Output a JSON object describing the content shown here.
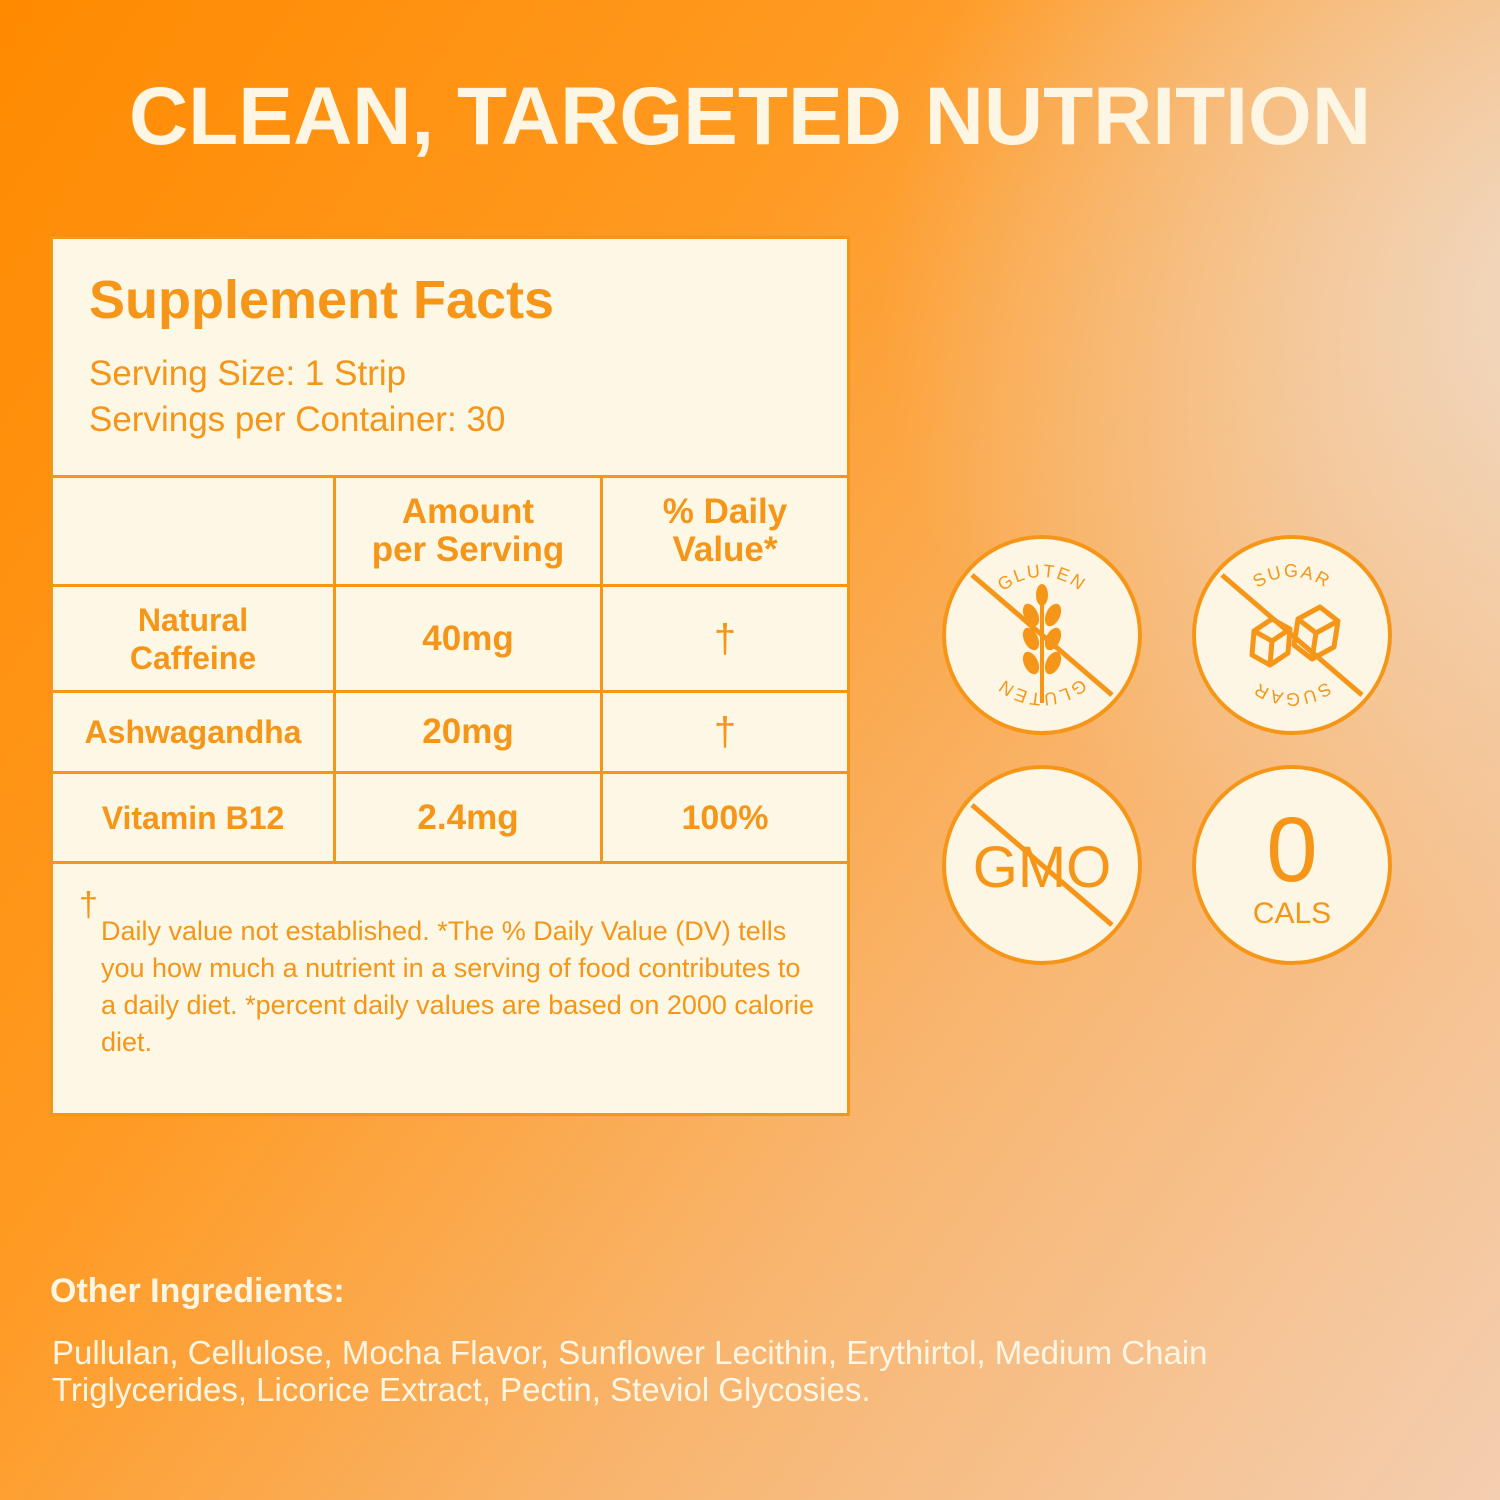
{
  "headline": "CLEAN, TARGETED NUTRITION",
  "facts": {
    "title": "Supplement Facts",
    "serving_size": "Serving Size: 1 Strip",
    "servings_per_container": "Servings per Container: 30",
    "columns": {
      "amount_line1": "Amount",
      "amount_line2": "per Serving",
      "dv_line1": "% Daily",
      "dv_line2": "Value*"
    },
    "rows": [
      {
        "name_line1": "Natural",
        "name_line2": "Caffeine",
        "amount": "40mg",
        "dv": "†"
      },
      {
        "name": "Ashwagandha",
        "amount": "20mg",
        "dv": "†"
      },
      {
        "name": "Vitamin B12",
        "amount": "2.4mg",
        "dv": "100%"
      }
    ],
    "footnote_mark": "†",
    "footnote": "Daily value not established. *The % Daily Value (DV) tells you how much a nutrient in a serving of food contributes to a daily diet. *percent daily values are based on 2000 calorie diet."
  },
  "badges": {
    "gluten": {
      "top": "GLUTEN",
      "bottom": "GLUTEN",
      "icon": "wheat-icon"
    },
    "sugar": {
      "top": "SUGAR",
      "bottom": "SUGAR",
      "icon": "sugar-cubes-icon"
    },
    "gmo": {
      "text": "GMO"
    },
    "cals": {
      "number": "0",
      "label": "CALS"
    }
  },
  "other_ingredients": {
    "title": "Other Ingredients:",
    "text": "Pullulan, Cellulose, Mocha Flavor, Sunflower Lecithin, Erythirtol, Medium Chain Triglycerides, Licorice Extract, Pectin, Steviol Glycosies."
  },
  "colors": {
    "accent": "#f59618",
    "cream": "#fdf6e4"
  }
}
